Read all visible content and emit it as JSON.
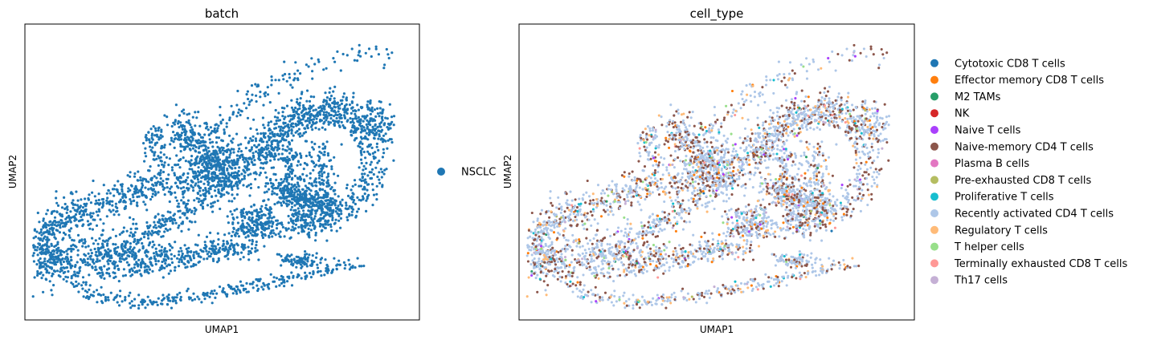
{
  "chart_data": [
    {
      "type": "scatter",
      "title": "batch",
      "xlabel": "UMAP1",
      "ylabel": "UMAP2",
      "ticks": false,
      "legend_position": "right",
      "legend": [
        {
          "label": "NSCLC",
          "color": "#1f77b4"
        }
      ],
      "color_mode": "single",
      "point_color": "#1f77b4"
    },
    {
      "type": "scatter",
      "title": "cell_type",
      "xlabel": "UMAP1",
      "ylabel": "UMAP2",
      "ticks": false,
      "legend_position": "right",
      "legend": [
        {
          "label": "Cytotoxic CD8 T cells",
          "color": "#1f77b4"
        },
        {
          "label": "Effector memory CD8 T cells",
          "color": "#ff7f0e"
        },
        {
          "label": "M2 TAMs",
          "color": "#279e68"
        },
        {
          "label": "NK",
          "color": "#d62728"
        },
        {
          "label": "Naive T cells",
          "color": "#aa40fc"
        },
        {
          "label": "Naive-memory CD4 T cells",
          "color": "#8c564b"
        },
        {
          "label": "Plasma B cells",
          "color": "#e377c2"
        },
        {
          "label": "Pre-exhausted CD8 T cells",
          "color": "#b5bd61"
        },
        {
          "label": "Proliferative T cells",
          "color": "#17becf"
        },
        {
          "label": "Recently activated CD4 T cells",
          "color": "#aec7e8"
        },
        {
          "label": "Regulatory T cells",
          "color": "#ffbb78"
        },
        {
          "label": "T helper cells",
          "color": "#98df8a"
        },
        {
          "label": "Terminally exhausted CD8 T cells",
          "color": "#ff9896"
        },
        {
          "label": "Th17 cells",
          "color": "#c5b0d5"
        }
      ],
      "color_mode": "categorical",
      "category_weights": {
        "Recently activated CD4 T cells": 0.62,
        "Naive-memory CD4 T cells": 0.24,
        "Regulatory T cells": 0.05,
        "Effector memory CD8 T cells": 0.02,
        "Proliferative T cells": 0.02,
        "Th17 cells": 0.015,
        "T helper cells": 0.012,
        "Naive T cells": 0.008,
        "M2 TAMs": 0.005,
        "Terminally exhausted CD8 T cells": 0.005,
        "Pre-exhausted CD8 T cells": 0.003,
        "Cytotoxic CD8 T cells": 0.002
      }
    }
  ]
}
